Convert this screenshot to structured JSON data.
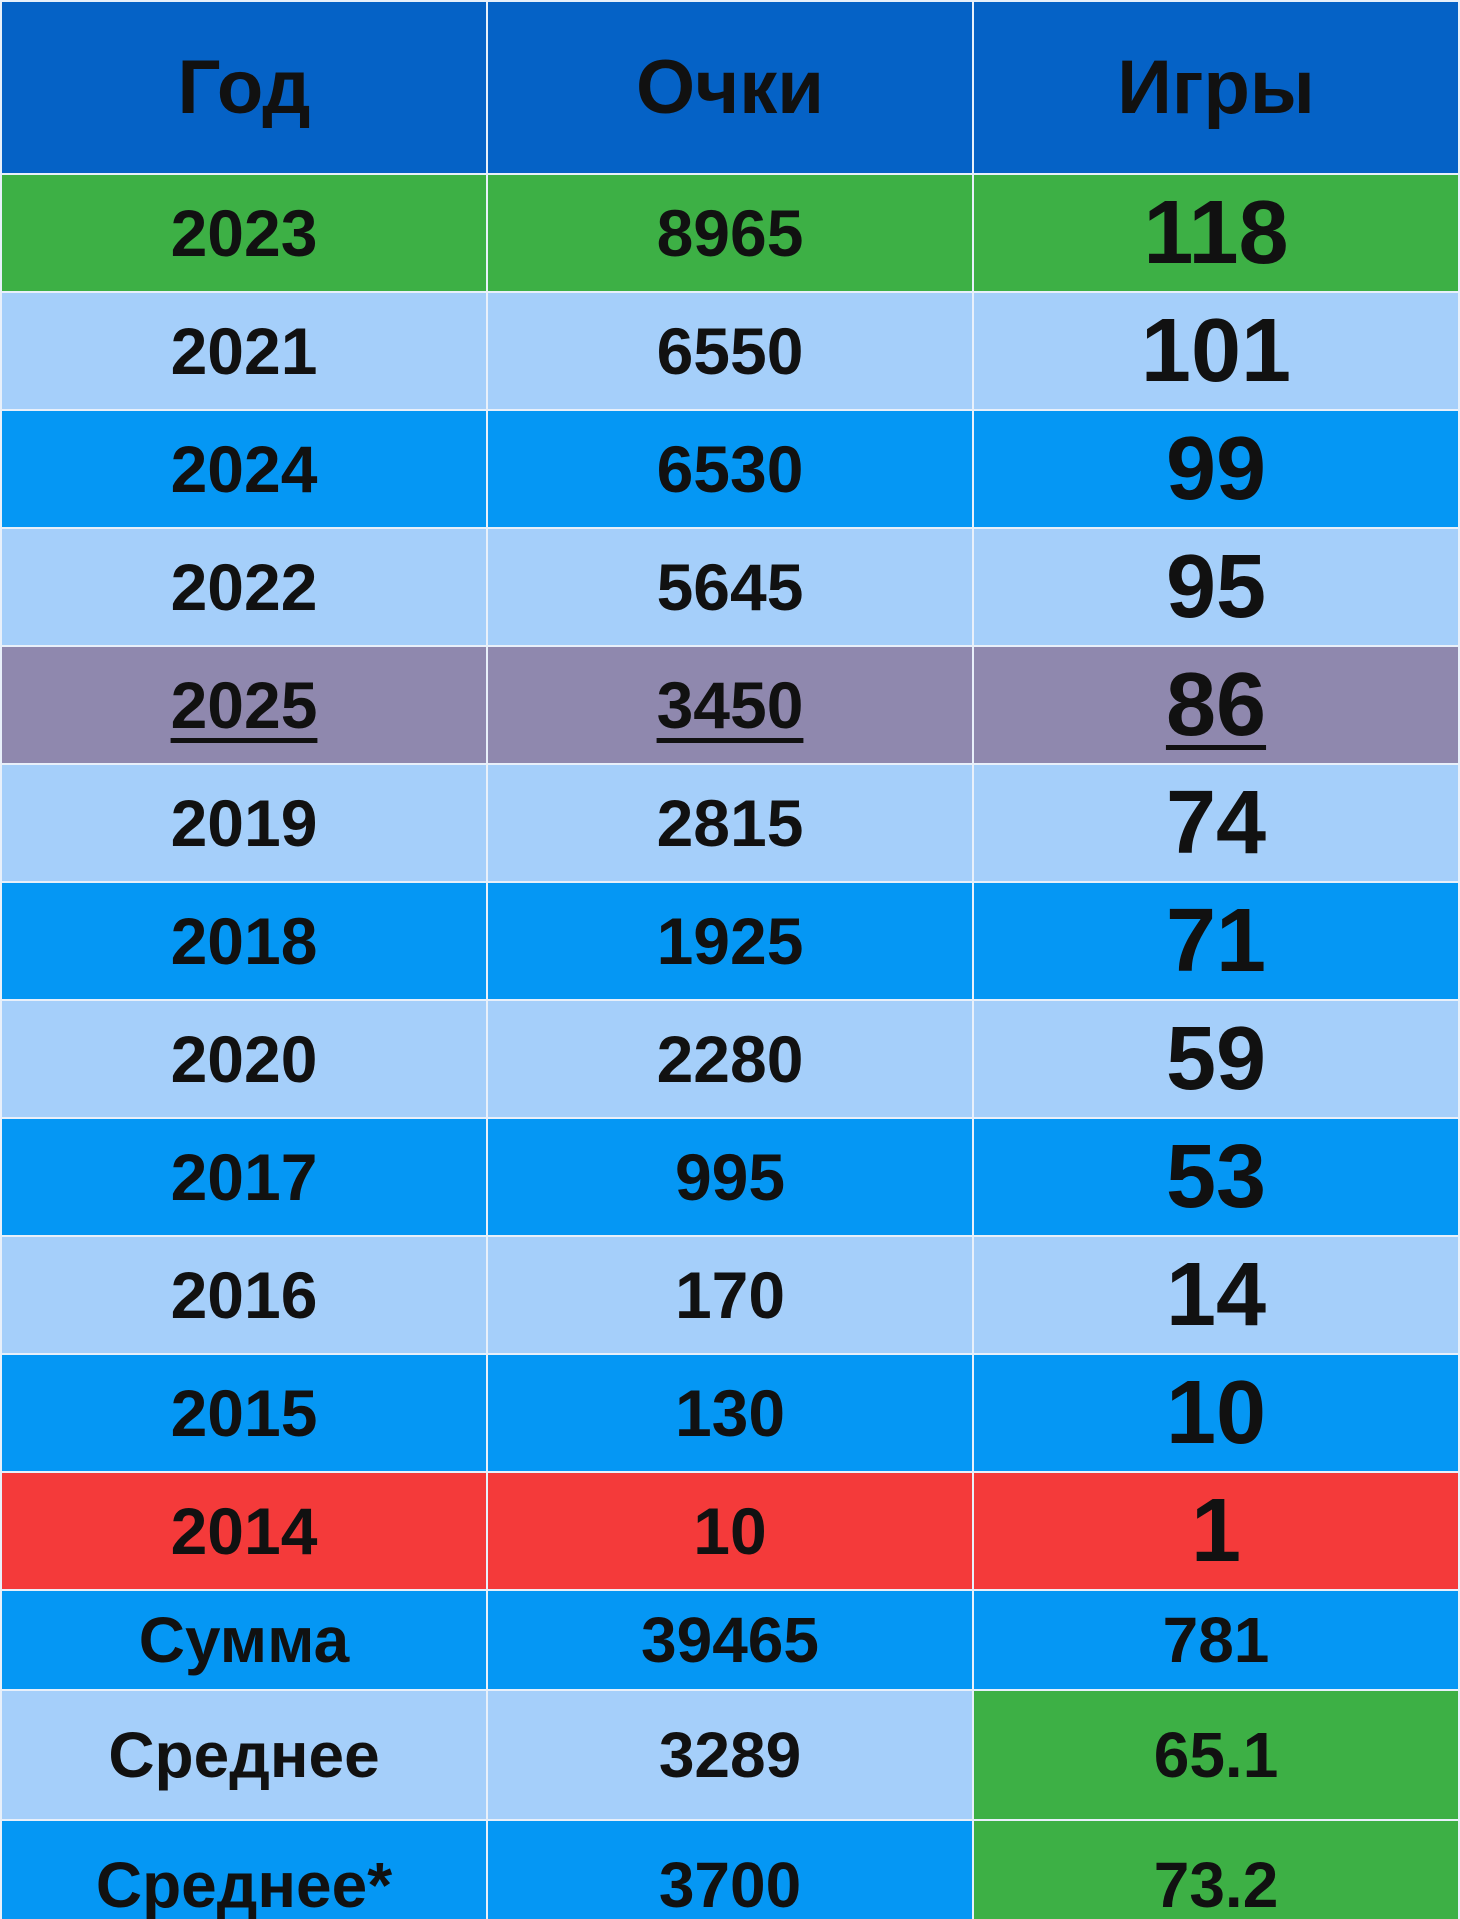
{
  "table": {
    "header": [
      "Год",
      "Очки",
      "Игры"
    ],
    "rows": [
      [
        2023,
        8965,
        118
      ],
      [
        2021,
        6550,
        101
      ],
      [
        2024,
        6530,
        99
      ],
      [
        2022,
        5645,
        95
      ],
      [
        2025,
        3450,
        86
      ],
      [
        2019,
        2815,
        74
      ],
      [
        2018,
        1925,
        71
      ],
      [
        2020,
        2280,
        59
      ],
      [
        2017,
        995,
        53
      ],
      [
        2016,
        170,
        14
      ],
      [
        2015,
        130,
        10
      ],
      [
        2014,
        10,
        1
      ],
      [
        "Сумма",
        39465,
        781
      ],
      [
        "Среднее",
        3289,
        65.1
      ],
      [
        "Среднее*",
        3700,
        73.2
      ]
    ]
  }
}
